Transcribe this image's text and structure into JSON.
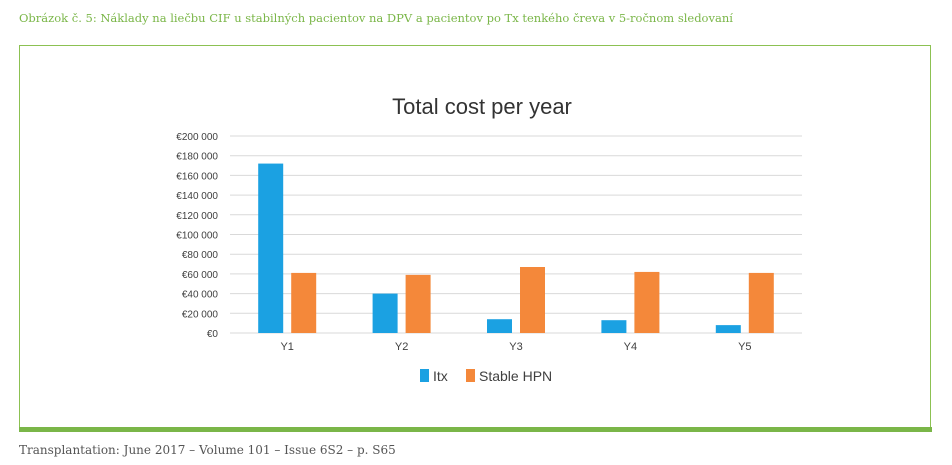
{
  "caption": "Obrázok č. 5: Náklady na liečbu CIF u stabilných pacientov na DPV a pacientov po Tx tenkého čreva  v 5-ročnom sledovaní",
  "source": "Transplantation: June 2017 – Volume 101 – Issue 6S2 – p. S65",
  "colors": {
    "caption": "#7ab648",
    "frame": "#8cc152",
    "itx": "#1ba1e2",
    "hpn": "#f4883a",
    "grid": "#d9d9d9"
  },
  "chart_data": {
    "type": "bar",
    "title": "Total cost per year",
    "categories": [
      "Y1",
      "Y2",
      "Y3",
      "Y4",
      "Y5"
    ],
    "series": [
      {
        "name": "Itx",
        "values": [
          172000,
          40000,
          14000,
          13000,
          8000
        ]
      },
      {
        "name": "Stable HPN",
        "values": [
          61000,
          59000,
          67000,
          62000,
          61000
        ]
      }
    ],
    "ylim": [
      0,
      200000
    ],
    "yticks": [
      0,
      20000,
      40000,
      60000,
      80000,
      100000,
      120000,
      140000,
      160000,
      180000,
      200000
    ],
    "ytick_labels": [
      "€0",
      "€20 000",
      "€40 000",
      "€60 000",
      "€80 000",
      "€100 000",
      "€120 000",
      "€140 000",
      "€160 000",
      "€180 000",
      "€200 000"
    ],
    "grid": true,
    "legend": "bottom"
  }
}
